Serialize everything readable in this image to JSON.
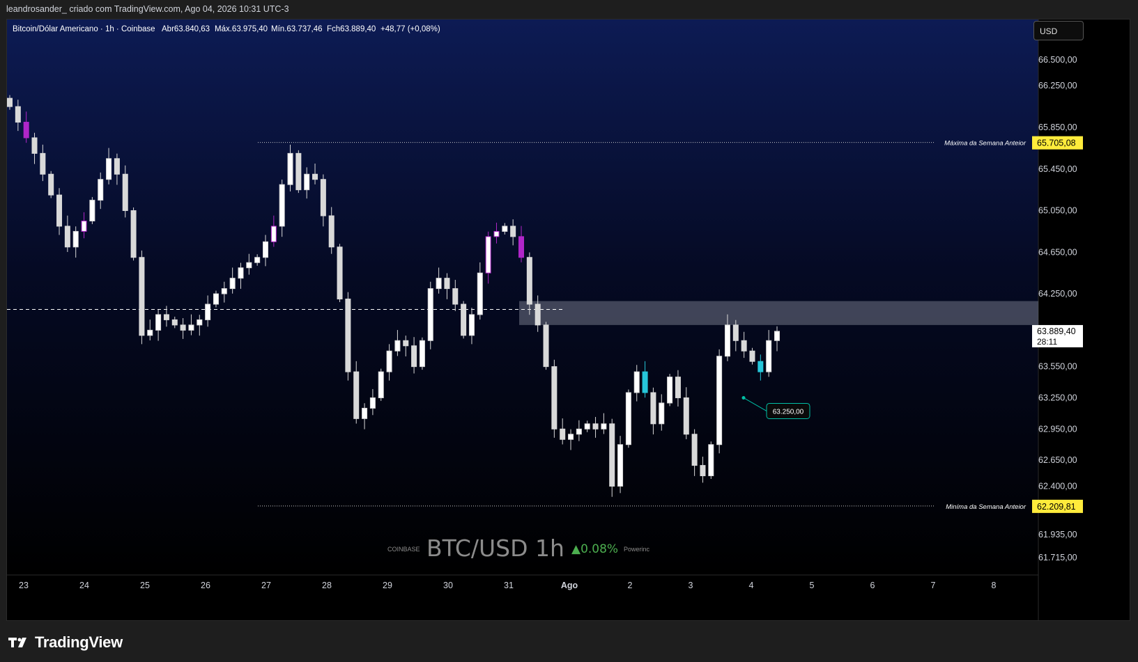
{
  "header": {
    "attribution": "leandrosander_ criado com TradingView.com, Ago 04, 2026 10:31 UTC-3"
  },
  "legend": {
    "symbol": "Bitcoin/Dólar Americano · 1h · Coinbase",
    "open": "Abr63.840,63",
    "high": "Máx.63.975,40",
    "low": "Mín.63.737,46",
    "close": "Fch63.889,40",
    "change": "+48,77 (+0,08%)"
  },
  "currency_button": "USD",
  "price_axis": {
    "ticks": [
      "66.500,00",
      "66.250,00",
      "65.850,00",
      "65.450,00",
      "65.050,00",
      "64.650,00",
      "64.250,00",
      "63.550,00",
      "63.250,00",
      "62.950,00",
      "62.650,00",
      "62.400,00",
      "61.935,00",
      "61.715,00"
    ],
    "current_price": "63.889,40",
    "countdown": "28:11"
  },
  "levels": {
    "prev_week_high": {
      "label": "Máxima da Semana Anteior",
      "value": "65.705,08",
      "color": "#ffeb3b"
    },
    "prev_week_low": {
      "label": "Miníma da Semana Anteior",
      "value": "62.209,81",
      "color": "#ffeb3b"
    }
  },
  "annotation": {
    "text": "63.250,00",
    "color": "#00bfa5"
  },
  "time_axis": {
    "ticks": [
      "23",
      "24",
      "25",
      "26",
      "27",
      "28",
      "29",
      "30",
      "31",
      "Ago",
      "2",
      "3",
      "4",
      "5",
      "6",
      "7",
      "8"
    ]
  },
  "watermark": {
    "exchange": "COINBASE",
    "pair": "BTC/USD 1h",
    "change": "▲0.08%",
    "brand": "Powerinc"
  },
  "footer": {
    "brand": "TradingView"
  },
  "colors": {
    "bg_top": "#0c1a52",
    "bg_bottom": "#000000",
    "candle": "#d9d9d9",
    "highlight": "#b026c9",
    "teal": "#26c6da",
    "zone": "#8a8f9e"
  },
  "chart_data": {
    "type": "candlestick",
    "title": "Bitcoin/Dólar Americano · 1h · Coinbase",
    "x_start": "Jul 23",
    "x_labels": [
      "23",
      "24",
      "25",
      "26",
      "27",
      "28",
      "29",
      "30",
      "31",
      "Ago",
      "2",
      "3",
      "4",
      "5",
      "6",
      "7",
      "8"
    ],
    "ylim": [
      61600,
      66700
    ],
    "hourly_close": [
      66050,
      65900,
      65750,
      65600,
      65400,
      65200,
      64900,
      64700,
      64850,
      64950,
      65150,
      65350,
      65550,
      65400,
      65050,
      64600,
      63850,
      63900,
      64050,
      64000,
      63950,
      63900,
      63950,
      64000,
      64150,
      64250,
      64300,
      64400,
      64500,
      64550,
      64600,
      64750,
      64900,
      65300,
      65600,
      65250,
      65400,
      65350,
      65000,
      64700,
      64200,
      63500,
      63050,
      63150,
      63250,
      63500,
      63700,
      63800,
      63750,
      63550,
      63800,
      64300,
      64400,
      64300,
      64150,
      63850,
      64050,
      64450,
      64800,
      64850,
      64900,
      64800,
      64600,
      64150,
      63950,
      63550,
      62950,
      62850,
      62900,
      62950,
      63000,
      62950,
      63000,
      62400,
      62800,
      63300,
      63500,
      63300,
      63000,
      63200,
      63450,
      63250,
      62900,
      62600,
      62500,
      62800,
      63650,
      63950,
      63800,
      63700,
      63600,
      63500,
      63800,
      63889.4
    ],
    "support_resistance_zone": [
      63950,
      64180
    ],
    "dashed_level": 64100,
    "prev_week_high": 65705.08,
    "prev_week_low": 62209.81,
    "marked_low": 63250.0,
    "last_price": 63889.4
  }
}
